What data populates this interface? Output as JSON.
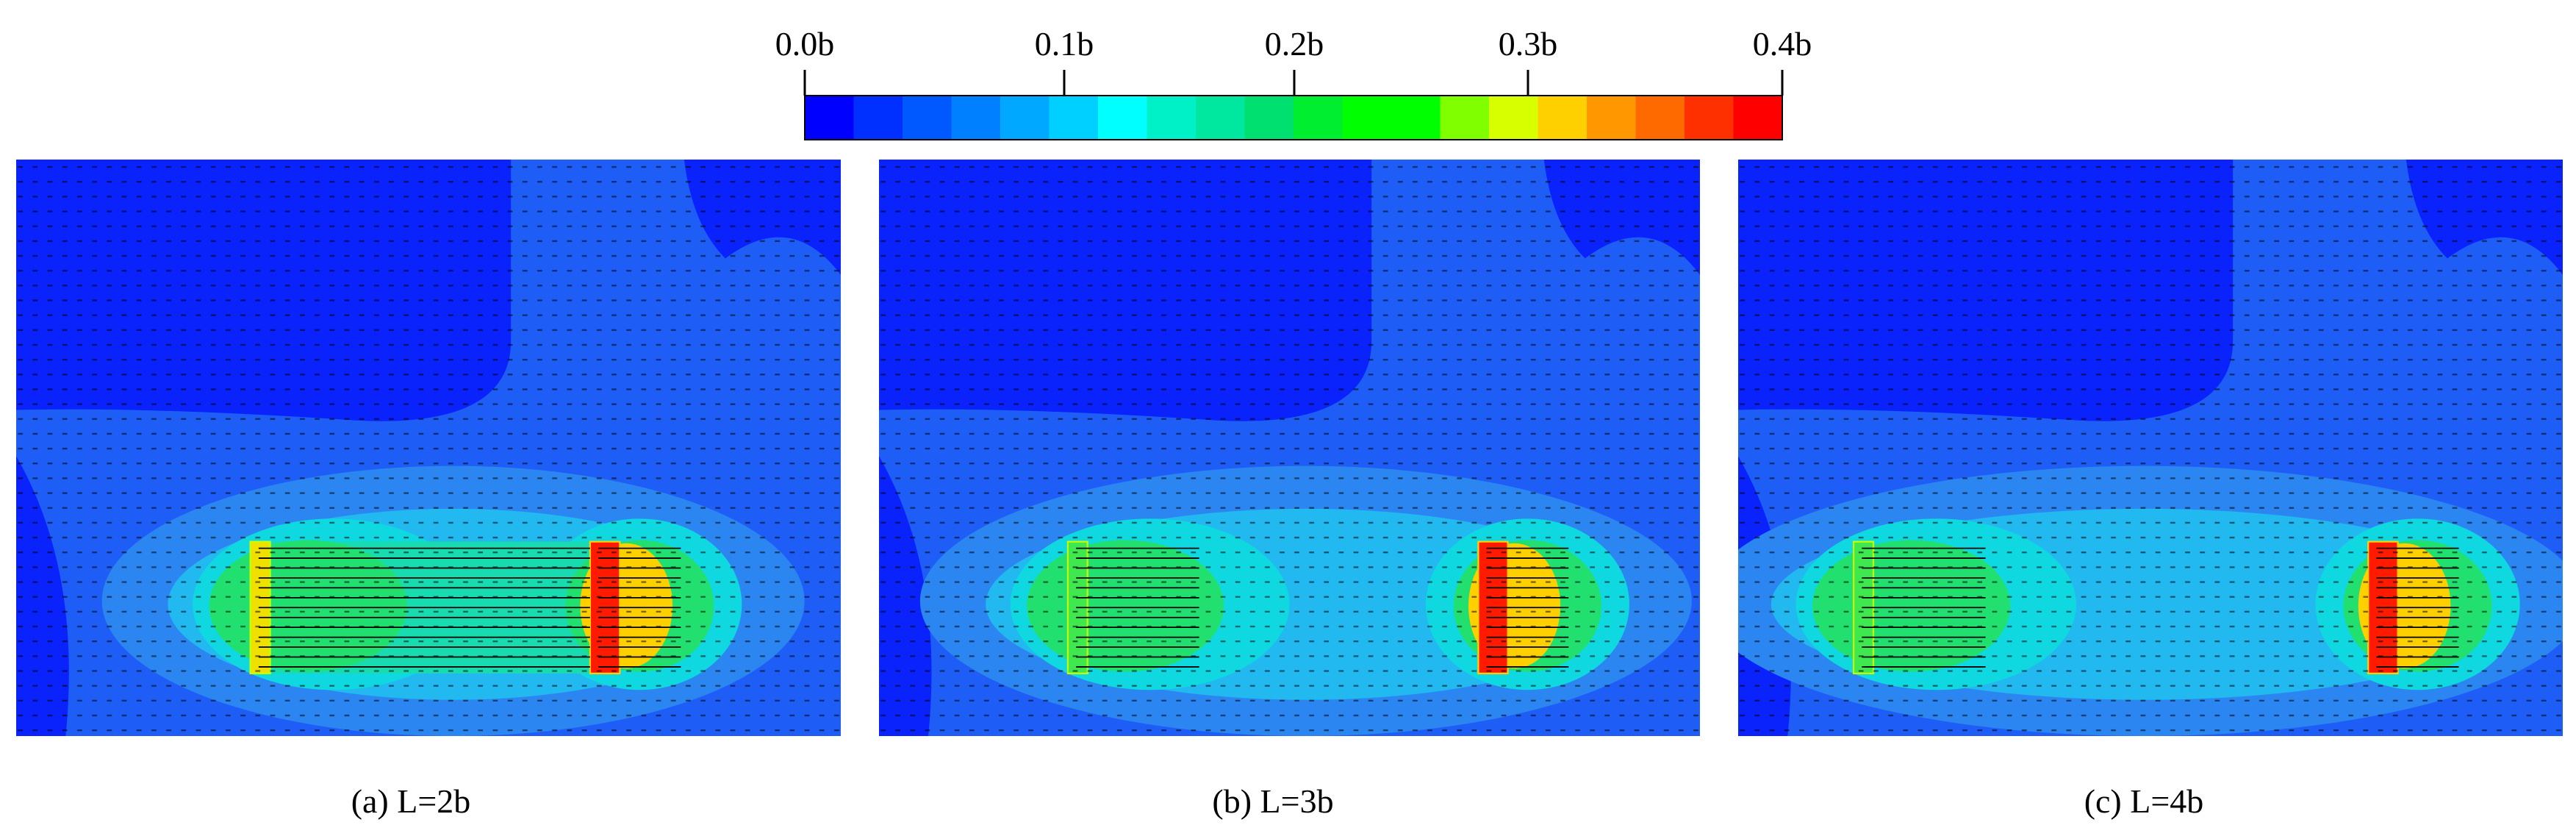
{
  "colorbar": {
    "ticks": [
      "0.0b",
      "0.1b",
      "0.2b",
      "0.3b",
      "0.4b"
    ]
  },
  "panels": [
    {
      "caption": "(a) L=2b"
    },
    {
      "caption": "(b) L=3b"
    },
    {
      "caption": "(c) L=4b"
    }
  ]
}
